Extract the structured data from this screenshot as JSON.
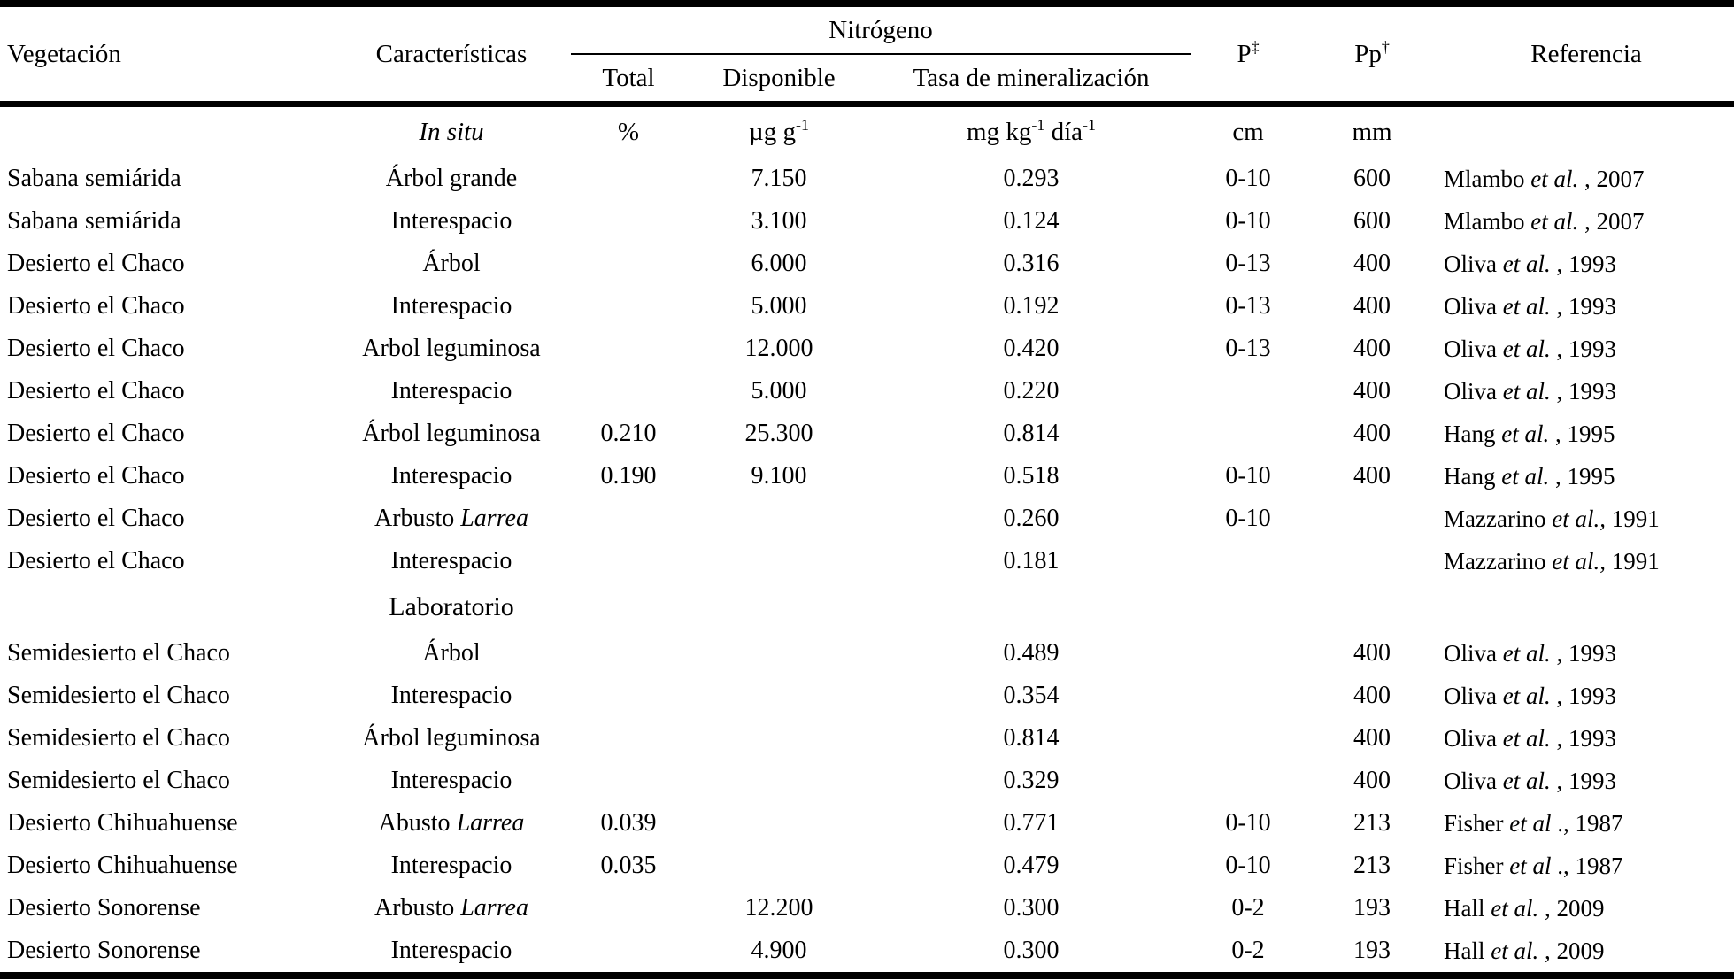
{
  "header": {
    "vegetacion": "Vegetación",
    "caracteristicas": "Características",
    "nitrogeno": "Nitrógeno",
    "total": "Total",
    "disponible": "Disponible",
    "tasa": "Tasa de mineralización",
    "p_base": "P",
    "p_sup": "‡",
    "pp_base": "Pp",
    "pp_sup": "†",
    "referencia": "Referencia"
  },
  "units_row": {
    "section_label": "In situ",
    "total_unit": "%",
    "disponible_unit_base": "µg g",
    "disponible_unit_sup": "-1",
    "tasa_unit_base1": "mg kg",
    "tasa_unit_sup1": "-1",
    "tasa_unit_base2": " día",
    "tasa_unit_sup2": "-1",
    "p_unit": "cm",
    "pp_unit": "mm"
  },
  "laboratorio_label": "Laboratorio",
  "rows_in_situ": [
    {
      "vegetacion": "Sabana semiárida",
      "caracteristica": "Árbol grande",
      "caracteristica_italic": "",
      "total": "",
      "disponible": "7.150",
      "tasa": "0.293",
      "p": "0-10",
      "pp": "600",
      "ref_author": "Mlambo",
      "ref_etal": "et al.",
      "ref_year": " , 2007"
    },
    {
      "vegetacion": "Sabana semiárida",
      "caracteristica": "Interespacio",
      "caracteristica_italic": "",
      "total": "",
      "disponible": "3.100",
      "tasa": "0.124",
      "p": "0-10",
      "pp": "600",
      "ref_author": "Mlambo",
      "ref_etal": "et al.",
      "ref_year": " , 2007"
    },
    {
      "vegetacion": "Desierto el Chaco",
      "caracteristica": "Árbol",
      "caracteristica_italic": "",
      "total": "",
      "disponible": "6.000",
      "tasa": "0.316",
      "p": "0-13",
      "pp": "400",
      "ref_author": "Oliva",
      "ref_etal": "et al.",
      "ref_year": " , 1993"
    },
    {
      "vegetacion": "Desierto el Chaco",
      "caracteristica": "Interespacio",
      "caracteristica_italic": "",
      "total": "",
      "disponible": "5.000",
      "tasa": "0.192",
      "p": "0-13",
      "pp": "400",
      "ref_author": "Oliva",
      "ref_etal": "et al.",
      "ref_year": " , 1993"
    },
    {
      "vegetacion": "Desierto el Chaco",
      "caracteristica": "Arbol leguminosa",
      "caracteristica_italic": "",
      "total": "",
      "disponible": "12.000",
      "tasa": "0.420",
      "p": "0-13",
      "pp": "400",
      "ref_author": "Oliva",
      "ref_etal": "et al.",
      "ref_year": " , 1993"
    },
    {
      "vegetacion": "Desierto el Chaco",
      "caracteristica": "Interespacio",
      "caracteristica_italic": "",
      "total": "",
      "disponible": "5.000",
      "tasa": "0.220",
      "p": "",
      "pp": "400",
      "ref_author": "Oliva",
      "ref_etal": "et al.",
      "ref_year": " , 1993"
    },
    {
      "vegetacion": "Desierto el Chaco",
      "caracteristica": "Árbol leguminosa",
      "caracteristica_italic": "",
      "total": "0.210",
      "disponible": "25.300",
      "tasa": "0.814",
      "p": "",
      "pp": "400",
      "ref_author": "Hang",
      "ref_etal": "et al.",
      "ref_year": " , 1995"
    },
    {
      "vegetacion": "Desierto el Chaco",
      "caracteristica": "Interespacio",
      "caracteristica_italic": "",
      "total": "0.190",
      "disponible": "9.100",
      "tasa": "0.518",
      "p": "0-10",
      "pp": "400",
      "ref_author": "Hang",
      "ref_etal": "et al.",
      "ref_year": " , 1995"
    },
    {
      "vegetacion": "Desierto el Chaco",
      "caracteristica": "Arbusto ",
      "caracteristica_italic": "Larrea",
      "total": "",
      "disponible": "",
      "tasa": "0.260",
      "p": "0-10",
      "pp": "",
      "ref_author": "Mazzarino",
      "ref_etal": "et al.,",
      "ref_year": " 1991"
    },
    {
      "vegetacion": "Desierto el Chaco",
      "caracteristica": "Interespacio",
      "caracteristica_italic": "",
      "total": "",
      "disponible": "",
      "tasa": "0.181",
      "p": "",
      "pp": "",
      "ref_author": "Mazzarino",
      "ref_etal": "et al.,",
      "ref_year": " 1991"
    }
  ],
  "rows_laboratorio": [
    {
      "vegetacion": "Semidesierto el Chaco",
      "caracteristica": "Árbol",
      "caracteristica_italic": "",
      "total": "",
      "disponible": "",
      "tasa": "0.489",
      "p": "",
      "pp": "400",
      "ref_author": "Oliva",
      "ref_etal": "et al.",
      "ref_year": " , 1993"
    },
    {
      "vegetacion": "Semidesierto el Chaco",
      "caracteristica": "Interespacio",
      "caracteristica_italic": "",
      "total": "",
      "disponible": "",
      "tasa": "0.354",
      "p": "",
      "pp": "400",
      "ref_author": "Oliva",
      "ref_etal": "et al.",
      "ref_year": " , 1993"
    },
    {
      "vegetacion": "Semidesierto el Chaco",
      "caracteristica": "Árbol leguminosa",
      "caracteristica_italic": "",
      "total": "",
      "disponible": "",
      "tasa": "0.814",
      "p": "",
      "pp": "400",
      "ref_author": "Oliva",
      "ref_etal": "et al.",
      "ref_year": " , 1993"
    },
    {
      "vegetacion": "Semidesierto el Chaco",
      "caracteristica": "Interespacio",
      "caracteristica_italic": "",
      "total": "",
      "disponible": "",
      "tasa": "0.329",
      "p": "",
      "pp": "400",
      "ref_author": "Oliva",
      "ref_etal": "et al.",
      "ref_year": " , 1993"
    },
    {
      "vegetacion": "Desierto Chihuahuense",
      "caracteristica": "Abusto ",
      "caracteristica_italic": "Larrea",
      "total": "0.039",
      "disponible": "",
      "tasa": "0.771",
      "p": "0-10",
      "pp": "213",
      "ref_author": "Fisher",
      "ref_etal": "et al",
      "ref_year": " ., 1987"
    },
    {
      "vegetacion": "Desierto Chihuahuense",
      "caracteristica": "Interespacio",
      "caracteristica_italic": "",
      "total": "0.035",
      "disponible": "",
      "tasa": "0.479",
      "p": "0-10",
      "pp": "213",
      "ref_author": "Fisher",
      "ref_etal": "et al",
      "ref_year": " ., 1987"
    },
    {
      "vegetacion": "Desierto Sonorense",
      "caracteristica": "Arbusto ",
      "caracteristica_italic": "Larrea",
      "total": "",
      "disponible": "12.200",
      "tasa": "0.300",
      "p": "0-2",
      "pp": "193",
      "ref_author": "Hall",
      "ref_etal": "et al.",
      "ref_year": " , 2009"
    },
    {
      "vegetacion": "Desierto Sonorense",
      "caracteristica": "Interespacio",
      "caracteristica_italic": "",
      "total": "",
      "disponible": "4.900",
      "tasa": "0.300",
      "p": "0-2",
      "pp": "193",
      "ref_author": "Hall",
      "ref_etal": "et al.",
      "ref_year": " , 2009"
    }
  ]
}
